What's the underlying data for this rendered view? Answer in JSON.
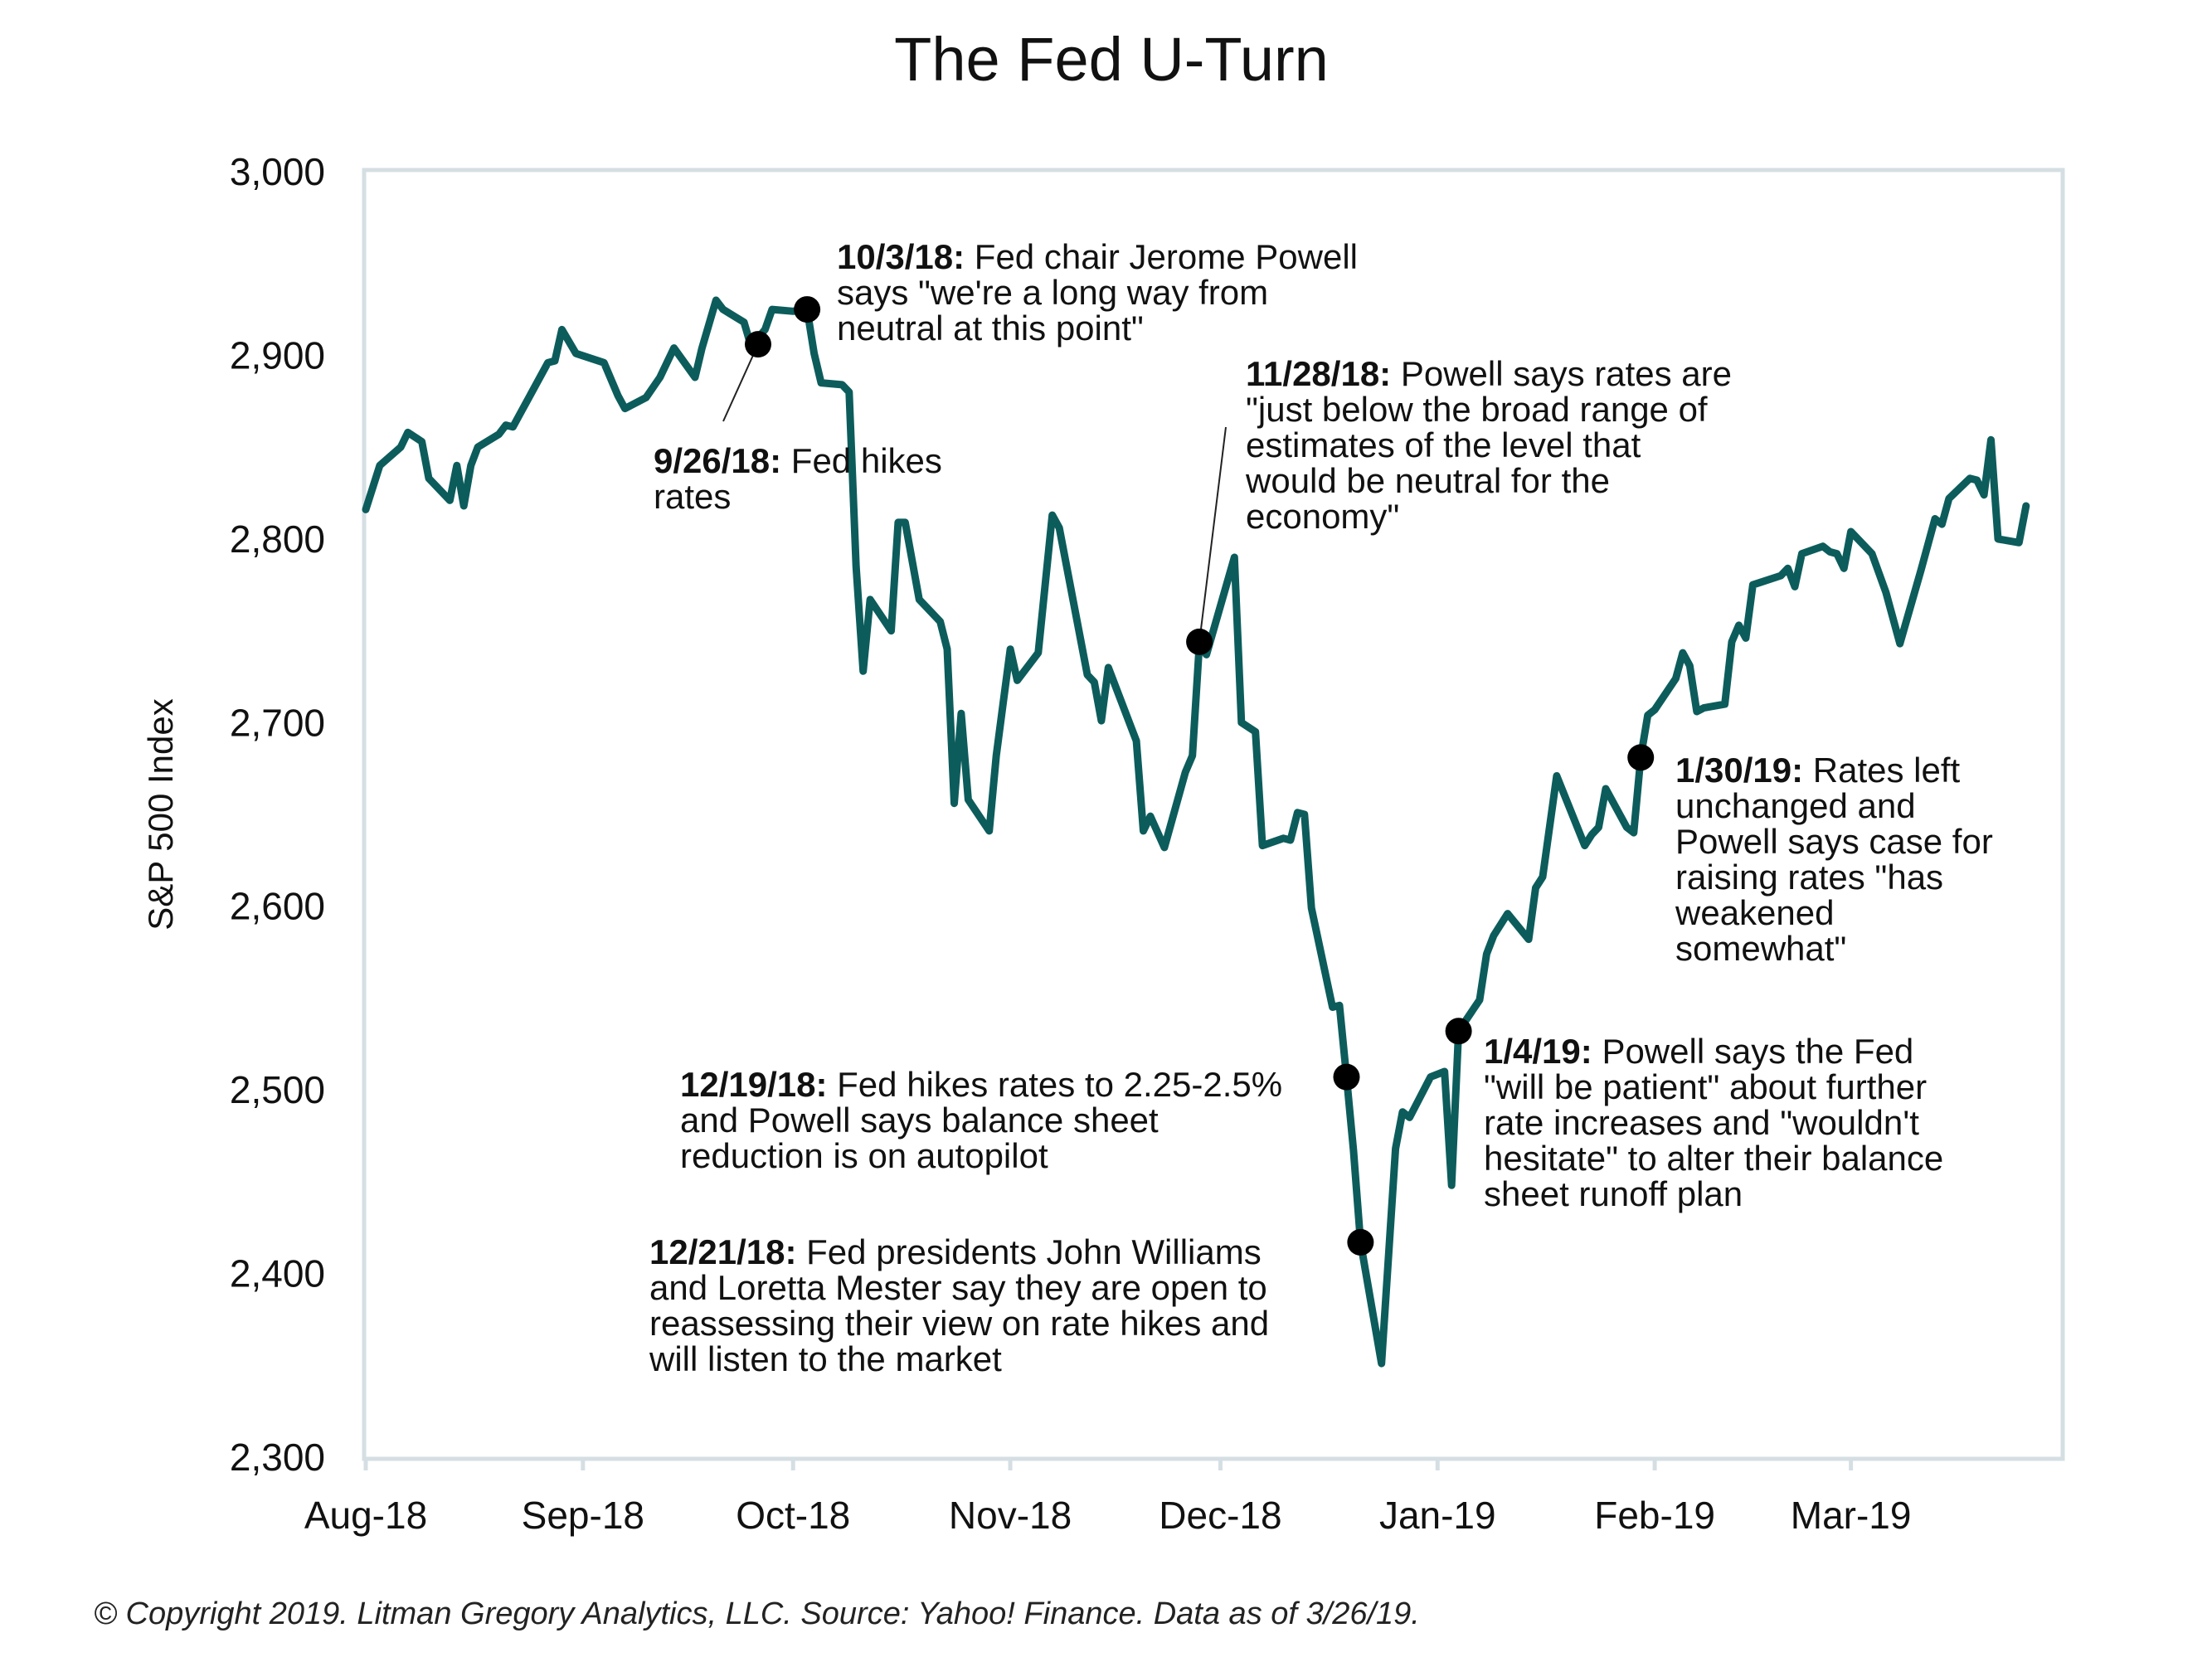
{
  "chart_data": {
    "type": "line",
    "title": "The Fed U-Turn",
    "xlabel": "",
    "ylabel": "S&P 500 Index",
    "ylim": [
      2300,
      3000
    ],
    "yticks": [
      2300,
      2400,
      2500,
      2600,
      2700,
      2800,
      2900,
      3000
    ],
    "ytick_labels": [
      "2,300",
      "2,400",
      "2,500",
      "2,600",
      "2,700",
      "2,800",
      "2,900",
      "3,000"
    ],
    "xlim": [
      "2018-08-01",
      "2019-03-31"
    ],
    "xticks": [
      "2018-08-01",
      "2018-09-01",
      "2018-10-01",
      "2018-11-01",
      "2018-12-01",
      "2019-01-01",
      "2019-02-01",
      "2019-03-01"
    ],
    "xtick_labels": [
      "Aug-18",
      "Sep-18",
      "Oct-18",
      "Nov-18",
      "Dec-18",
      "Jan-19",
      "Feb-19",
      "Mar-19"
    ],
    "grid": false,
    "line_color": "#0d5c5c",
    "series": [
      {
        "name": "",
        "x": [
          "2018-08-01",
          "2018-08-03",
          "2018-08-06",
          "2018-08-07",
          "2018-08-09",
          "2018-08-10",
          "2018-08-13",
          "2018-08-14",
          "2018-08-15",
          "2018-08-16",
          "2018-08-17",
          "2018-08-20",
          "2018-08-21",
          "2018-08-22",
          "2018-08-24",
          "2018-08-27",
          "2018-08-28",
          "2018-08-29",
          "2018-08-31",
          "2018-09-04",
          "2018-09-06",
          "2018-09-07",
          "2018-09-10",
          "2018-09-12",
          "2018-09-14",
          "2018-09-17",
          "2018-09-18",
          "2018-09-20",
          "2018-09-21",
          "2018-09-24",
          "2018-09-25",
          "2018-09-27",
          "2018-09-28",
          "2018-10-01",
          "2018-10-03",
          "2018-10-04",
          "2018-10-05",
          "2018-10-08",
          "2018-10-09",
          "2018-10-10",
          "2018-10-11",
          "2018-10-12",
          "2018-10-15",
          "2018-10-16",
          "2018-10-17",
          "2018-10-19",
          "2018-10-22",
          "2018-10-23",
          "2018-10-24",
          "2018-10-25",
          "2018-10-26",
          "2018-10-29",
          "2018-10-30",
          "2018-10-31",
          "2018-11-01",
          "2018-11-02",
          "2018-11-05",
          "2018-11-07",
          "2018-11-08",
          "2018-11-12",
          "2018-11-13",
          "2018-11-14",
          "2018-11-15",
          "2018-11-19",
          "2018-11-20",
          "2018-11-21",
          "2018-11-23",
          "2018-11-26",
          "2018-11-27",
          "2018-11-28",
          "2018-11-29",
          "2018-12-03",
          "2018-12-04",
          "2018-12-06",
          "2018-12-07",
          "2018-12-10",
          "2018-12-11",
          "2018-12-12",
          "2018-12-13",
          "2018-12-14",
          "2018-12-17",
          "2018-12-18",
          "2018-12-19",
          "2018-12-20",
          "2018-12-21",
          "2018-12-24",
          "2018-12-26",
          "2018-12-27",
          "2018-12-28",
          "2018-12-31",
          "2019-01-02",
          "2019-01-03",
          "2019-01-04",
          "2019-01-07",
          "2019-01-08",
          "2019-01-09",
          "2019-01-11",
          "2019-01-14",
          "2019-01-15",
          "2019-01-16",
          "2019-01-18",
          "2019-01-22",
          "2019-01-23",
          "2019-01-24",
          "2019-01-25",
          "2019-01-28",
          "2019-01-29",
          "2019-01-30",
          "2019-01-31",
          "2019-02-01",
          "2019-02-04",
          "2019-02-05",
          "2019-02-06",
          "2019-02-07",
          "2019-02-08",
          "2019-02-11",
          "2019-02-12",
          "2019-02-13",
          "2019-02-14",
          "2019-02-15",
          "2019-02-19",
          "2019-02-20",
          "2019-02-21",
          "2019-02-22",
          "2019-02-25",
          "2019-02-26",
          "2019-02-27",
          "2019-02-28",
          "2019-03-01",
          "2019-03-04",
          "2019-03-06",
          "2019-03-08",
          "2019-03-11",
          "2019-03-13",
          "2019-03-14",
          "2019-03-15",
          "2019-03-18",
          "2019-03-19",
          "2019-03-20",
          "2019-03-21",
          "2019-03-22",
          "2019-03-25",
          "2019-03-26"
        ],
        "y": [
          2816,
          2840,
          2850,
          2858,
          2853,
          2833,
          2821,
          2840,
          2818,
          2840,
          2850,
          2857,
          2862,
          2861,
          2875,
          2896,
          2897,
          2914,
          2901,
          2896,
          2878,
          2871,
          2877,
          2888,
          2904,
          2888,
          2904,
          2930,
          2925,
          2918,
          2905,
          2914,
          2925,
          2924,
          2925,
          2901,
          2885,
          2884,
          2880,
          2785,
          2728,
          2767,
          2750,
          2809,
          2809,
          2767,
          2755,
          2740,
          2656,
          2705,
          2658,
          2641,
          2682,
          2711,
          2740,
          2723,
          2738,
          2813,
          2806,
          2726,
          2722,
          2701,
          2730,
          2690,
          2641,
          2649,
          2632,
          2673,
          2682,
          2743,
          2737,
          2790,
          2700,
          2695,
          2633,
          2637,
          2636,
          2651,
          2650,
          2599,
          2545,
          2546,
          2507,
          2467,
          2417,
          2351,
          2468,
          2488,
          2485,
          2507,
          2510,
          2448,
          2532,
          2549,
          2574,
          2584,
          2596,
          2582,
          2610,
          2616,
          2671,
          2633,
          2639,
          2643,
          2664,
          2643,
          2640,
          2681,
          2704,
          2707,
          2724,
          2738,
          2731,
          2706,
          2708,
          2710,
          2744,
          2753,
          2746,
          2775,
          2780,
          2784,
          2774,
          2792,
          2796,
          2793,
          2792,
          2784,
          2804,
          2792,
          2771,
          2743,
          2783,
          2811,
          2808,
          2822,
          2833,
          2832,
          2824,
          2854,
          2800,
          2798,
          2818
        ]
      }
    ],
    "highlights": [
      {
        "x": "2018-09-26",
        "y": 2906
      },
      {
        "x": "2018-10-03",
        "y": 2925
      },
      {
        "x": "2018-11-28",
        "y": 2744
      },
      {
        "x": "2018-12-19",
        "y": 2507
      },
      {
        "x": "2018-12-21",
        "y": 2417
      },
      {
        "x": "2019-01-04",
        "y": 2532
      },
      {
        "x": "2019-01-30",
        "y": 2681
      }
    ],
    "annotations": [
      {
        "date_label": "9/26/18:",
        "lines": [
          "Fed hikes",
          "rates"
        ]
      },
      {
        "date_label": "10/3/18:",
        "lines": [
          "Fed chair Jerome Powell",
          "says \"we're a long way from",
          "neutral at this point\""
        ]
      },
      {
        "date_label": "11/28/18:",
        "lines": [
          "Powell says rates are",
          "\"just below the broad range of",
          "estimates of the level that",
          "would be neutral for the",
          "economy\""
        ]
      },
      {
        "date_label": "12/19/18:",
        "lines": [
          "Fed hikes rates to 2.25-2.5%",
          "and Powell says balance sheet",
          "reduction is on autopilot"
        ]
      },
      {
        "date_label": "12/21/18:",
        "lines": [
          "Fed presidents John Williams",
          "and Loretta Mester say they are open to",
          "reassessing their view on rate hikes and",
          "will listen to the market"
        ]
      },
      {
        "date_label": "1/4/19:",
        "lines": [
          "Powell says the Fed",
          "\"will be patient\" about further",
          "rate increases and \"wouldn't",
          "hesitate\" to alter their balance",
          "sheet runoff plan"
        ]
      },
      {
        "date_label": "1/30/19:",
        "lines": [
          "Rates left",
          "unchanged and",
          "Powell says case for",
          "raising rates \"has",
          "weakened",
          "somewhat\""
        ]
      }
    ]
  },
  "footer": {
    "copyright": "© Copyright 2019. Litman Gregory Analytics, LLC. Source: Yahoo! Finance. Data as of 3/26/19."
  }
}
